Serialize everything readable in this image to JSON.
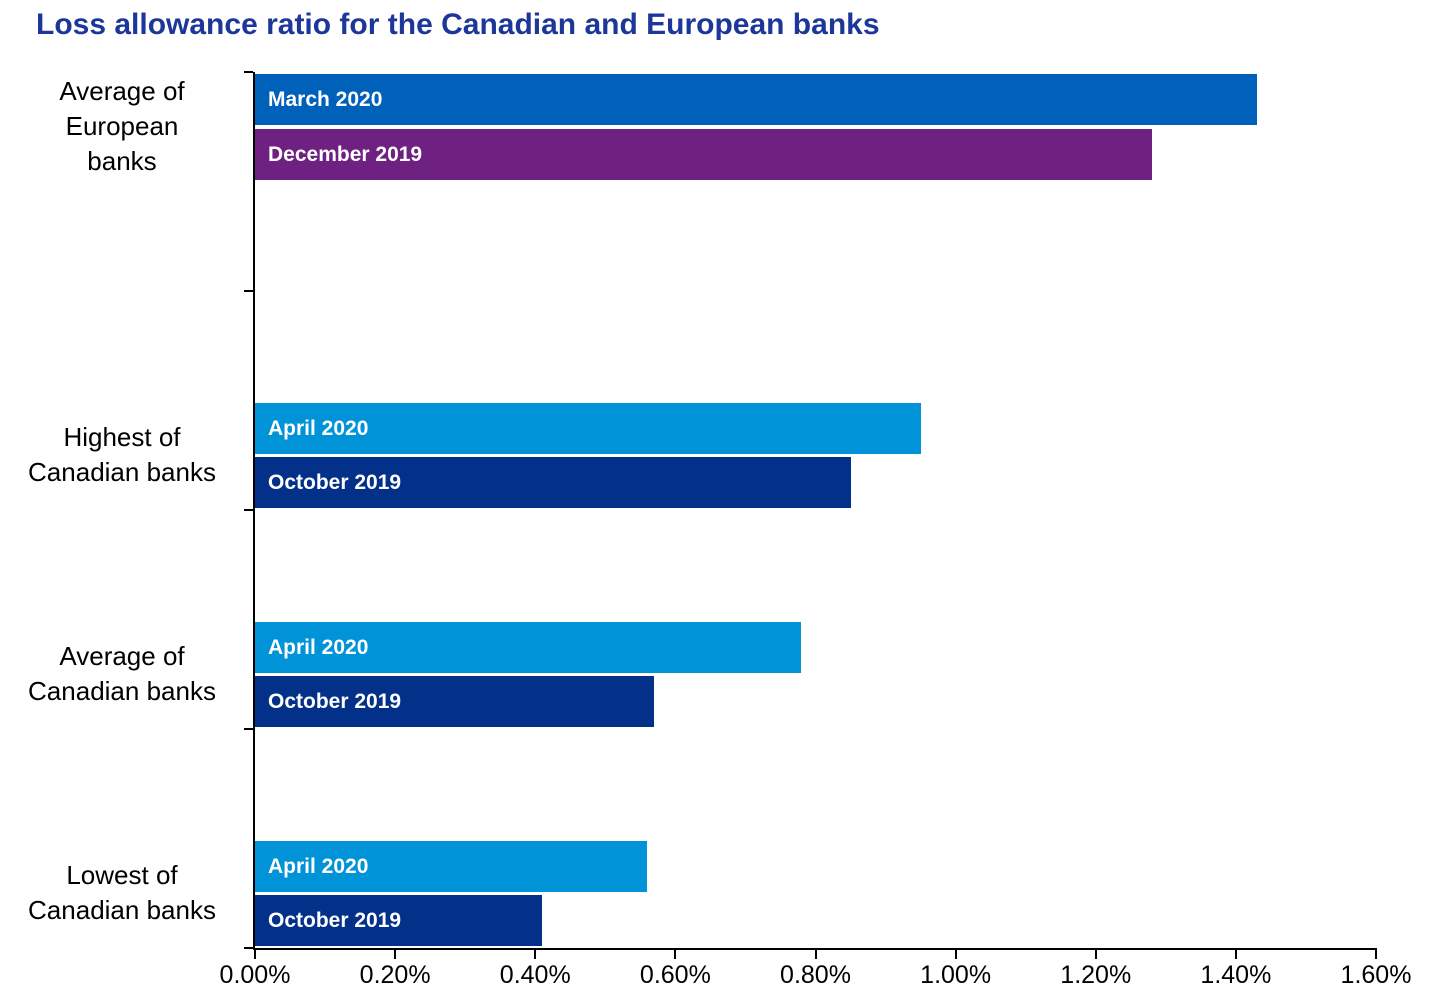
{
  "title": "Loss allowance ratio for the Canadian and European banks",
  "colors": {
    "title": "#1c3799",
    "axis": "#000000",
    "bar_label_text": "#ffffff",
    "march_2020_blue": "#0061ba",
    "december_2019_purple": "#6e2181",
    "april_2020_light_blue": "#0093d8",
    "october_2019_navy": "#033089"
  },
  "chart_data": {
    "type": "bar",
    "orientation": "horizontal",
    "title": "Loss allowance ratio for the Canadian and European banks",
    "value_unit": "percent",
    "categories": [
      "Average of European banks",
      "Highest of Canadian banks",
      "Average of Canadian banks",
      "Lowest of Canadian banks"
    ],
    "category_display_lines": [
      [
        "Average of",
        "European",
        "banks"
      ],
      [
        "Highest of",
        "Canadian banks"
      ],
      [
        "Average of",
        "Canadian banks"
      ],
      [
        "Lowest of",
        "Canadian banks"
      ]
    ],
    "series": [
      {
        "name": "March 2020",
        "color": "#0061ba",
        "values": [
          1.43,
          null,
          null,
          null
        ]
      },
      {
        "name": "December 2019",
        "color": "#6e2181",
        "values": [
          1.28,
          null,
          null,
          null
        ]
      },
      {
        "name": "April 2020",
        "color": "#0093d8",
        "values": [
          null,
          0.95,
          0.78,
          0.56
        ]
      },
      {
        "name": "October 2019",
        "color": "#033089",
        "values": [
          null,
          0.85,
          0.57,
          0.41
        ]
      }
    ],
    "xlabel": "",
    "ylabel": "",
    "x_axis": {
      "min": 0,
      "max": 1.6,
      "step": 0.2,
      "tick_labels": [
        "0.00%",
        "0.20%",
        "0.40%",
        "0.60%",
        "0.80%",
        "1.00%",
        "1.20%",
        "1.40%",
        "1.60%"
      ]
    },
    "grid": false,
    "legend_position": "none (series labels shown inside bars)"
  }
}
